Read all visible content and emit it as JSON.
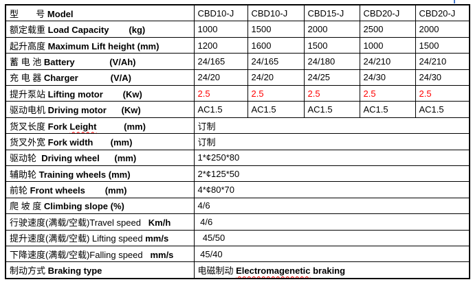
{
  "page": {
    "background": "#ffffff",
    "text_color": "#000000",
    "red_value_color": "#ff0000",
    "spellcheck_squiggle_color": "#ff0000",
    "border_color": "#000000",
    "artifact_color": "#4477cc"
  },
  "table": {
    "description": "forklift-specification-table",
    "value_columns": 5,
    "rows": [
      {
        "name": "model",
        "label": [
          {
            "t": "型       号",
            "b": 0
          },
          {
            "t": " ",
            "b": 0
          },
          {
            "t": "Model",
            "b": 1
          }
        ],
        "values": [
          "CBD10-J",
          "CBD10-J",
          "CBD15-J",
          "CBD20-J",
          "CBD20-J"
        ]
      },
      {
        "name": "load-capacity",
        "label": [
          {
            "t": "额定载重 ",
            "b": 0
          },
          {
            "t": "Load Capacity",
            "b": 1
          },
          {
            "t": "        (kg)",
            "b": 1
          }
        ],
        "values": [
          "1000",
          "1500",
          "2000",
          "2500",
          "2000"
        ]
      },
      {
        "name": "max-lift-height",
        "label": [
          {
            "t": "起升高度 ",
            "b": 0
          },
          {
            "t": "Maximum Lift height (mm)",
            "b": 1
          }
        ],
        "values": [
          "1200",
          "1600",
          "1500",
          "1000",
          "1500"
        ]
      },
      {
        "name": "battery",
        "label": [
          {
            "t": "蓄 电 池 ",
            "b": 0
          },
          {
            "t": "Battery",
            "b": 1
          },
          {
            "t": "              (V/Ah)",
            "b": 1
          }
        ],
        "values": [
          "24/165",
          "24/165",
          "24/180",
          "24/210",
          "24/210"
        ]
      },
      {
        "name": "charger",
        "label": [
          {
            "t": "充 电 器 ",
            "b": 0
          },
          {
            "t": "Charger",
            "b": 1
          },
          {
            "t": "             (V/A)",
            "b": 1
          }
        ],
        "values": [
          "24/20",
          "24/20",
          "24/25",
          "24/30",
          "24/30"
        ]
      },
      {
        "name": "lifting-motor",
        "label": [
          {
            "t": "提升泵站 ",
            "b": 0
          },
          {
            "t": "Lifting motor",
            "b": 1
          },
          {
            "t": "        (Kw)",
            "b": 1
          }
        ],
        "values": [
          "2.5",
          "2.5",
          "2.5",
          "2.5",
          "2.5"
        ],
        "values_color": "#ff0000"
      },
      {
        "name": "driving-motor",
        "label": [
          {
            "t": "驱动电机 ",
            "b": 0
          },
          {
            "t": "Driving motor",
            "b": 1
          },
          {
            "t": "      (Kw)",
            "b": 1
          }
        ],
        "values": [
          "AC1.5",
          "AC1.5",
          "AC1.5",
          "AC1.5",
          "AC1.5"
        ]
      },
      {
        "name": "fork-length",
        "label": [
          {
            "t": "货叉长度 ",
            "b": 0
          },
          {
            "t": "Fork ",
            "b": 1
          },
          {
            "t": "Leight",
            "b": 1,
            "sq": 1
          },
          {
            "t": "           (mm)",
            "b": 1
          }
        ],
        "merged": [
          {
            "t": "订制",
            "b": 0
          }
        ]
      },
      {
        "name": "fork-width",
        "label": [
          {
            "t": "货叉外宽 ",
            "b": 0
          },
          {
            "t": "Fork width",
            "b": 1
          },
          {
            "t": "       (mm)",
            "b": 1
          }
        ],
        "merged": [
          {
            "t": "订制",
            "b": 0
          }
        ]
      },
      {
        "name": "driving-wheel",
        "label": [
          {
            "t": "驱动轮  ",
            "b": 0
          },
          {
            "t": "Driving wheel",
            "b": 1
          },
          {
            "t": "      (mm)",
            "b": 1
          }
        ],
        "merged": [
          {
            "t": "1*¢250*80",
            "b": 0
          }
        ]
      },
      {
        "name": "training-wheels",
        "label": [
          {
            "t": "辅助轮 ",
            "b": 0
          },
          {
            "t": "Training wheels (mm)",
            "b": 1
          }
        ],
        "merged": [
          {
            "t": "2*¢125*50",
            "b": 0
          }
        ]
      },
      {
        "name": "front-wheels",
        "label": [
          {
            "t": "前轮 ",
            "b": 0
          },
          {
            "t": "Front wheels",
            "b": 1
          },
          {
            "t": "        (mm)",
            "b": 1
          }
        ],
        "merged": [
          {
            "t": "4*¢80*70",
            "b": 0
          }
        ]
      },
      {
        "name": "climbing-slope",
        "label": [
          {
            "t": "爬 坡 度 ",
            "b": 0
          },
          {
            "t": "Climbing slope (%)",
            "b": 1
          }
        ],
        "merged": [
          {
            "t": "4/6",
            "b": 0
          }
        ]
      },
      {
        "name": "travel-speed",
        "label": [
          {
            "t": "行驶速度(满载/空载)",
            "b": 0
          },
          {
            "t": "Travel speed",
            "b": 0
          },
          {
            "t": "   ",
            "b": 0
          },
          {
            "t": "Km/h",
            "b": 1
          }
        ],
        "merged": [
          {
            "t": " 4/6",
            "b": 0
          }
        ]
      },
      {
        "name": "lifting-speed",
        "label": [
          {
            "t": "提升速度(满载/空载) ",
            "b": 0
          },
          {
            "t": "Lifting speed ",
            "b": 0
          },
          {
            "t": "mm/s",
            "b": 1
          }
        ],
        "merged": [
          {
            "t": "  45/50",
            "b": 0
          }
        ]
      },
      {
        "name": "falling-speed",
        "label": [
          {
            "t": "下降速度(满载/空载)",
            "b": 0
          },
          {
            "t": "Falling speed",
            "b": 0
          },
          {
            "t": "   ",
            "b": 0
          },
          {
            "t": "mm/s",
            "b": 1
          }
        ],
        "merged": [
          {
            "t": " 45/40",
            "b": 0
          }
        ]
      },
      {
        "name": "braking-type",
        "label": [
          {
            "t": "制动方式 ",
            "b": 0
          },
          {
            "t": "Braking type",
            "b": 1
          }
        ],
        "merged": [
          {
            "t": "电磁制动 ",
            "b": 0
          },
          {
            "t": "Electromagenetic",
            "b": 1,
            "sq": 1
          },
          {
            "t": " braking",
            "b": 1
          }
        ]
      }
    ]
  }
}
